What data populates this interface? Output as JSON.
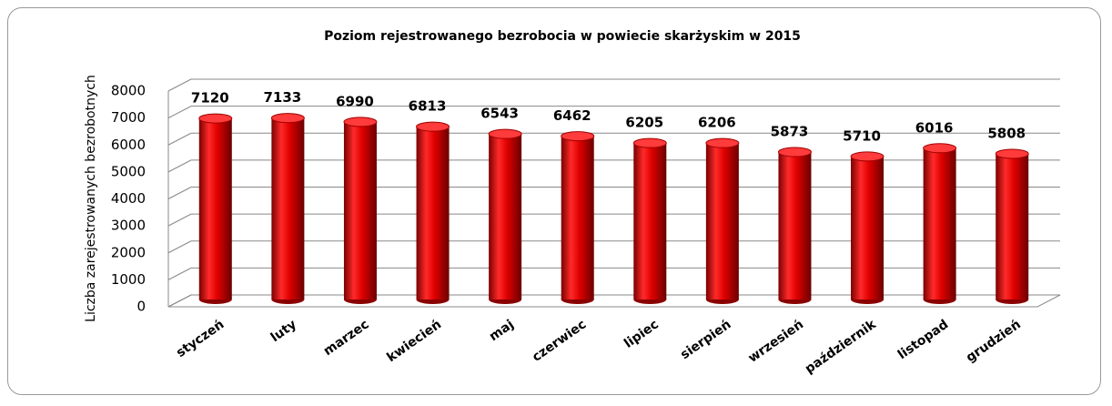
{
  "chart_data": {
    "type": "bar",
    "title": "Poziom rejestrowanego bezrobocia w powiecie skarżyskim w 2015",
    "y_label": "Liczba zarejestrowanych bezrobotnych",
    "categories": [
      "styczeń",
      "luty",
      "marzec",
      "kwiecień",
      "maj",
      "czerwiec",
      "lipiec",
      "sierpień",
      "wrzesień",
      "październik",
      "listopad",
      "grudzień"
    ],
    "values": [
      7120,
      7133,
      6990,
      6813,
      6543,
      6462,
      6205,
      6206,
      5873,
      5710,
      6016,
      5808
    ],
    "color": "#d40000",
    "ylim": [
      0,
      8000
    ],
    "yticks": [
      0,
      1000,
      2000,
      3000,
      4000,
      5000,
      6000,
      7000,
      8000
    ],
    "grid": true
  }
}
